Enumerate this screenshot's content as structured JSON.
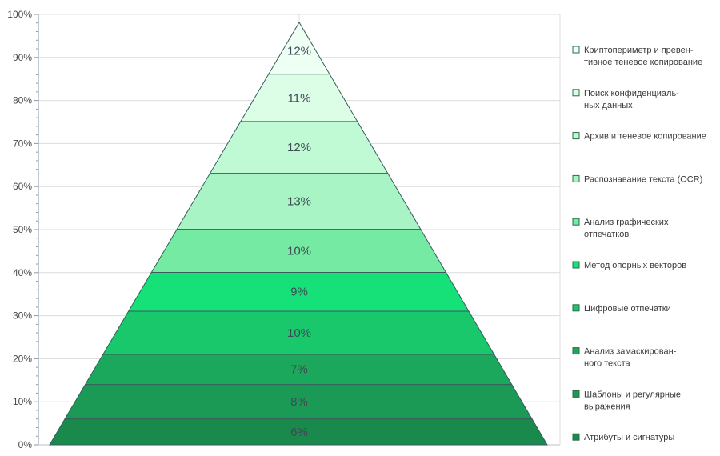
{
  "chart_data": {
    "type": "pyramid",
    "y_axis": {
      "min": 0,
      "max": 100,
      "tick_labels": [
        "0%",
        "10%",
        "20%",
        "30%",
        "40%",
        "50%",
        "60%",
        "70%",
        "80%",
        "90%",
        "100%"
      ]
    },
    "grid": true,
    "legend_placement": "right",
    "segments": [
      {
        "label": "6%",
        "value": 6,
        "name": [
          "Атрибуты и сигнатуры"
        ],
        "color": "#1a8a4c"
      },
      {
        "label": "8%",
        "value": 8,
        "name": [
          "Шаблоны и регулярные",
          "выражения"
        ],
        "color": "#1a9a55"
      },
      {
        "label": "7%",
        "value": 7,
        "name": [
          "Анализ замаскирован-",
          "ного текста"
        ],
        "color": "#1ca85c"
      },
      {
        "label": "10%",
        "value": 10,
        "name": [
          "Цифровые  отпечатки"
        ],
        "color": "#18c86a"
      },
      {
        "label": "9%",
        "value": 9,
        "name": [
          "Метод  опорных векторов"
        ],
        "color": "#16e078"
      },
      {
        "label": "10%",
        "value": 10,
        "name": [
          "Анализ графических",
          "отпечатков"
        ],
        "color": "#74eaa2"
      },
      {
        "label": "13%",
        "value": 13,
        "name": [
          "Распознавание текста (OCR)"
        ],
        "color": "#a8f4c4"
      },
      {
        "label": "12%",
        "value": 12,
        "name": [
          "Архив и теневое  копирование"
        ],
        "color": "#bffad4"
      },
      {
        "label": "11%",
        "value": 11,
        "name": [
          "Поиск конфиденциаль-",
          "ных данных"
        ],
        "color": "#dcfde6"
      },
      {
        "label": "12%",
        "value": 12,
        "name": [
          "Криптопериметр  и превен-",
          "тивное теневое  копирование"
        ],
        "color": "#eefff4"
      }
    ]
  }
}
